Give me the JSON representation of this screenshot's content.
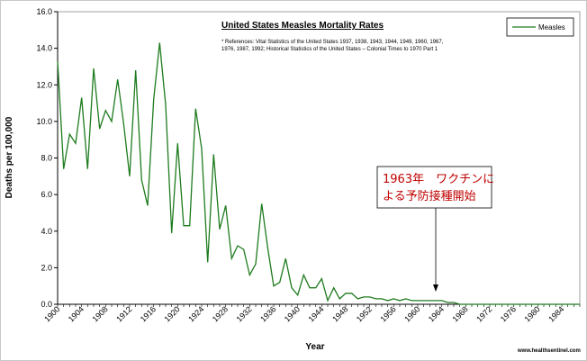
{
  "chart_data": {
    "type": "line",
    "title": "United States Measles Mortality Rates",
    "references": [
      "* References: Vital Statistics of the United States 1937, 1938, 1943, 1944, 1949, 1960, 1967,",
      "1976, 1987, 1992; Historical Statistics of the United States – Colonial Times to 1970 Part 1"
    ],
    "xlabel": "Year",
    "ylabel": "Deaths per 100,000",
    "xlim": [
      1900,
      1987
    ],
    "ylim": [
      0,
      16
    ],
    "y_ticks": [
      "0.0",
      "2.0",
      "4.0",
      "6.0",
      "8.0",
      "10.0",
      "12.0",
      "14.0",
      "16.0"
    ],
    "x_ticks": [
      "1900",
      "1904",
      "1908",
      "1912",
      "1916",
      "1920",
      "1924",
      "1928",
      "1932",
      "1936",
      "1940",
      "1944",
      "1948",
      "1952",
      "1956",
      "1960",
      "1964",
      "1968",
      "1972",
      "1976",
      "1980",
      "1984"
    ],
    "legend_position": "top-right",
    "grid": false,
    "series": [
      {
        "name": "Measles",
        "color": "#1e7b1e",
        "points": [
          [
            1900,
            13.3
          ],
          [
            1901,
            7.4
          ],
          [
            1902,
            9.3
          ],
          [
            1903,
            8.8
          ],
          [
            1904,
            11.3
          ],
          [
            1905,
            7.4
          ],
          [
            1906,
            12.9
          ],
          [
            1907,
            9.6
          ],
          [
            1908,
            10.6
          ],
          [
            1909,
            10.0
          ],
          [
            1910,
            12.3
          ],
          [
            1911,
            9.9
          ],
          [
            1912,
            7.0
          ],
          [
            1913,
            12.8
          ],
          [
            1914,
            6.8
          ],
          [
            1915,
            5.4
          ],
          [
            1916,
            11.2
          ],
          [
            1917,
            14.3
          ],
          [
            1918,
            10.9
          ],
          [
            1919,
            3.9
          ],
          [
            1920,
            8.8
          ],
          [
            1921,
            4.3
          ],
          [
            1922,
            4.3
          ],
          [
            1923,
            10.7
          ],
          [
            1924,
            8.5
          ],
          [
            1925,
            2.3
          ],
          [
            1926,
            8.2
          ],
          [
            1927,
            4.1
          ],
          [
            1928,
            5.4
          ],
          [
            1929,
            2.5
          ],
          [
            1930,
            3.2
          ],
          [
            1931,
            3.0
          ],
          [
            1932,
            1.6
          ],
          [
            1933,
            2.2
          ],
          [
            1934,
            5.5
          ],
          [
            1935,
            3.1
          ],
          [
            1936,
            1.0
          ],
          [
            1937,
            1.2
          ],
          [
            1938,
            2.5
          ],
          [
            1939,
            0.9
          ],
          [
            1940,
            0.5
          ],
          [
            1941,
            1.6
          ],
          [
            1942,
            0.9
          ],
          [
            1943,
            0.9
          ],
          [
            1944,
            1.4
          ],
          [
            1945,
            0.2
          ],
          [
            1946,
            0.9
          ],
          [
            1947,
            0.3
          ],
          [
            1948,
            0.6
          ],
          [
            1949,
            0.6
          ],
          [
            1950,
            0.3
          ],
          [
            1951,
            0.4
          ],
          [
            1952,
            0.4
          ],
          [
            1953,
            0.3
          ],
          [
            1954,
            0.3
          ],
          [
            1955,
            0.2
          ],
          [
            1956,
            0.3
          ],
          [
            1957,
            0.2
          ],
          [
            1958,
            0.3
          ],
          [
            1959,
            0.2
          ],
          [
            1960,
            0.2
          ],
          [
            1961,
            0.2
          ],
          [
            1962,
            0.2
          ],
          [
            1963,
            0.2
          ],
          [
            1964,
            0.2
          ],
          [
            1965,
            0.1
          ],
          [
            1966,
            0.1
          ],
          [
            1967,
            0.0
          ],
          [
            1968,
            0.0
          ],
          [
            1969,
            0.0
          ],
          [
            1970,
            0.0
          ],
          [
            1971,
            0.0
          ],
          [
            1972,
            0.0
          ],
          [
            1973,
            0.0
          ],
          [
            1974,
            0.0
          ],
          [
            1975,
            0.0
          ],
          [
            1976,
            0.0
          ],
          [
            1977,
            0.0
          ],
          [
            1978,
            0.0
          ],
          [
            1979,
            0.0
          ],
          [
            1980,
            0.0
          ],
          [
            1981,
            0.0
          ],
          [
            1982,
            0.0
          ],
          [
            1983,
            0.0
          ],
          [
            1984,
            0.0
          ],
          [
            1985,
            0.0
          ],
          [
            1986,
            0.0
          ],
          [
            1987,
            0.0
          ]
        ]
      }
    ],
    "annotation": {
      "lines": [
        "1963年　ワクチンに",
        "よる予防接種開始"
      ],
      "arrow_x": 1963,
      "text_color": "#c00000"
    },
    "credit": "www.healthsentinel.com"
  }
}
